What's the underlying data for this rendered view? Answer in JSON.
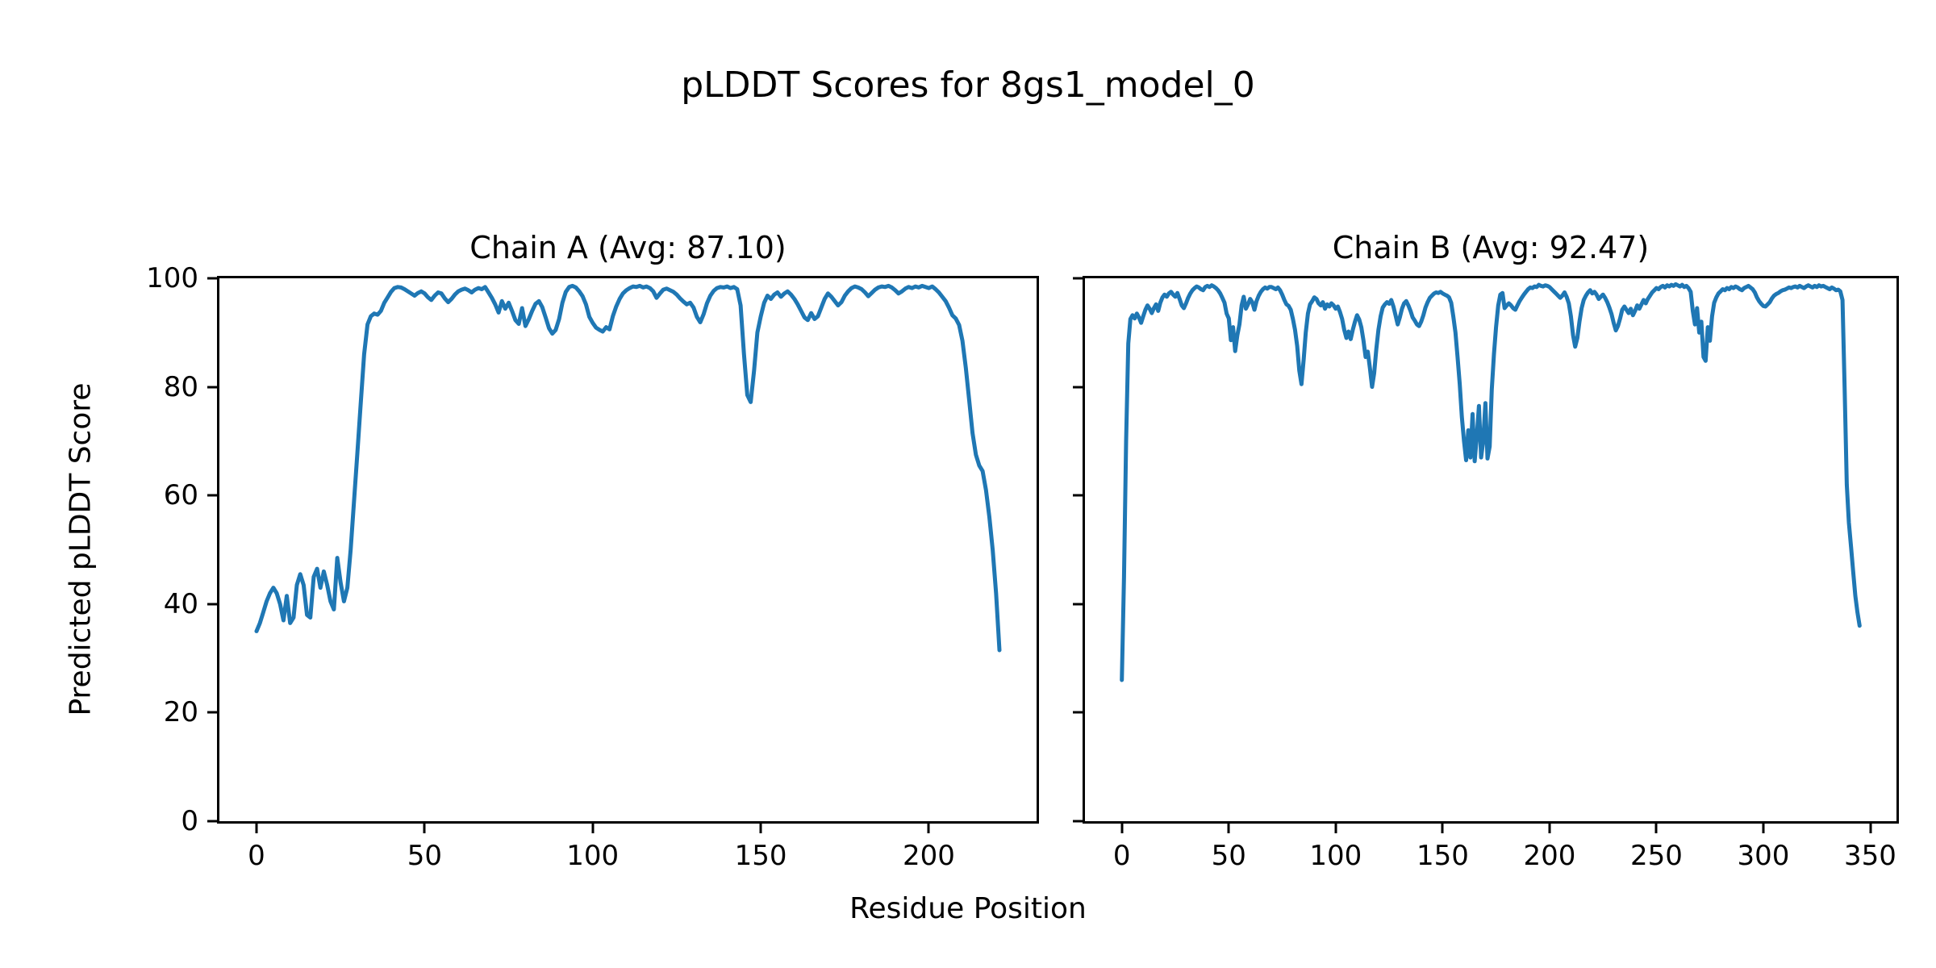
{
  "figure": {
    "suptitle": "pLDDT Scores for 8gs1_model_0",
    "xlabel": "Residue Position",
    "ylabel": "Predicted pLDDT Score",
    "line_color": "#1f77b4",
    "axis_color": "#000000",
    "background_color": "#ffffff",
    "grid": false,
    "legend": "none"
  },
  "chart_data": [
    {
      "type": "line",
      "title": "Chain A (Avg: 87.10)",
      "chain": "A",
      "avg_plddt": "87.10",
      "x_start": 0,
      "xlim": [
        -11.05,
        232.05
      ],
      "ylim": [
        0,
        100
      ],
      "xticks": [
        0,
        50,
        100,
        150,
        200
      ],
      "yticks": [
        0,
        20,
        40,
        60,
        80,
        100
      ],
      "show_ytick_labels": true,
      "values": [
        35,
        36.5,
        38.5,
        40.5,
        42,
        43,
        42,
        40,
        37,
        41.5,
        36.5,
        37.5,
        43.5,
        45.5,
        43.5,
        38,
        37.5,
        45,
        46.5,
        43,
        46,
        43.5,
        40.5,
        39,
        48.5,
        44,
        40.5,
        43,
        50,
        59,
        68,
        77,
        86,
        91.5,
        93,
        93.5,
        93.3,
        94,
        95.5,
        96.5,
        97.5,
        98.2,
        98.4,
        98.3,
        98,
        97.6,
        97.2,
        96.8,
        97.3,
        97.6,
        97.2,
        96.5,
        96,
        96.8,
        97.4,
        97.2,
        96.3,
        95.6,
        96.2,
        97,
        97.6,
        97.9,
        98.1,
        97.8,
        97.4,
        97.9,
        98.2,
        98,
        98.4,
        97.4,
        96.4,
        95.2,
        93.7,
        95.8,
        94.4,
        95.5,
        94,
        92.3,
        91.6,
        94.5,
        91.2,
        92.5,
        94,
        95.3,
        95.8,
        94.7,
        92.8,
        90.8,
        89.8,
        90.5,
        92.5,
        95.5,
        97.5,
        98.4,
        98.6,
        98.3,
        97.6,
        96.7,
        95.2,
        92.9,
        91.8,
        90.9,
        90.5,
        90.2,
        91,
        90.6,
        93,
        94.8,
        96.2,
        97.2,
        97.8,
        98.2,
        98.5,
        98.4,
        98.6,
        98.3,
        98.5,
        98.2,
        97.6,
        96.4,
        97.2,
        97.9,
        98.1,
        97.8,
        97.5,
        97,
        96.3,
        95.7,
        95.2,
        95.5,
        94.6,
        92.9,
        91.9,
        93.4,
        95.4,
        96.8,
        97.7,
        98.2,
        98.4,
        98.3,
        98.5,
        98.2,
        98.4,
        98,
        95,
        86,
        78.5,
        77.2,
        83,
        90,
        93,
        95.5,
        96.8,
        96.2,
        97,
        97.4,
        96.6,
        97.2,
        97.6,
        97,
        96.2,
        95.2,
        94,
        92.8,
        92.3,
        93.6,
        92.5,
        93,
        94.6,
        96.2,
        97.2,
        96.6,
        95.8,
        95,
        95.6,
        96.8,
        97.6,
        98.2,
        98.5,
        98.3,
        98,
        97.4,
        96.7,
        97.3,
        97.9,
        98.3,
        98.5,
        98.4,
        98.6,
        98.3,
        97.8,
        97.2,
        97.6,
        98.1,
        98.4,
        98.2,
        98.5,
        98.3,
        98.6,
        98.4,
        98.2,
        98.5,
        98,
        97.4,
        96.6,
        95.8,
        94.6,
        93.2,
        92.6,
        91.4,
        88.5,
        83.5,
        77.5,
        71.5,
        67.5,
        65.5,
        64.5,
        61,
        56,
        50,
        42,
        31.5
      ]
    },
    {
      "type": "line",
      "title": "Chain B (Avg: 92.47)",
      "chain": "B",
      "avg_plddt": "92.47",
      "x_start": 0,
      "xlim": [
        -17.25,
        362.25
      ],
      "ylim": [
        0,
        100
      ],
      "xticks": [
        0,
        50,
        100,
        150,
        200,
        250,
        300,
        350
      ],
      "yticks": [
        0,
        20,
        40,
        60,
        80,
        100
      ],
      "show_ytick_labels": false,
      "values": [
        26,
        45,
        70,
        88,
        92.5,
        93.2,
        92.6,
        93.5,
        92.8,
        91.8,
        93,
        94.2,
        95,
        94.4,
        93.6,
        94.5,
        95.2,
        94,
        95.5,
        96.5,
        97,
        96.6,
        97.2,
        97.5,
        97,
        96.6,
        97.3,
        96.2,
        95,
        94.5,
        95.4,
        96.4,
        97.2,
        97.8,
        98.2,
        98.5,
        98.3,
        98,
        97.8,
        98.4,
        98.6,
        98.4,
        98.7,
        98.5,
        98.2,
        97.8,
        97.2,
        96.4,
        95.5,
        93.5,
        92.6,
        88.6,
        91,
        86.6,
        89.5,
        91.5,
        95,
        96.6,
        94.4,
        95.2,
        96.2,
        95.6,
        94.2,
        95.8,
        96.8,
        97.5,
        98,
        98.3,
        98.1,
        98.4,
        98.4,
        98.2,
        98,
        98.3,
        97.8,
        97,
        96,
        95.2,
        94.9,
        94.2,
        92.5,
        90.5,
        87.5,
        83,
        80.5,
        85,
        90,
        93.5,
        95.2,
        95.8,
        96.5,
        96.2,
        95.4,
        95,
        95.6,
        94.4,
        95.2,
        94.8,
        95.4,
        95,
        94.4,
        94.8,
        93.8,
        92.5,
        90.5,
        89,
        90.2,
        88.8,
        90.5,
        92,
        93.2,
        92.4,
        91,
        88.5,
        85.5,
        86.5,
        83.5,
        80,
        82.5,
        87,
        90.5,
        93,
        94.6,
        95.2,
        95.6,
        95.3,
        96,
        94.8,
        93.2,
        91.5,
        92.8,
        94.4,
        95.4,
        95.8,
        95,
        94,
        92.8,
        92.2,
        91.5,
        91.2,
        92,
        93.2,
        94.6,
        95.6,
        96.4,
        96.8,
        97.2,
        97.4,
        97.3,
        97.5,
        97.2,
        97,
        96.8,
        96.5,
        95.5,
        93,
        90,
        85.5,
        80.5,
        74.5,
        70,
        66.5,
        72,
        67,
        75,
        66.3,
        71,
        76.5,
        67,
        70,
        77,
        66.8,
        69,
        79.5,
        86,
        91,
        95,
        97,
        97.3,
        94.5,
        95,
        95.4,
        95,
        94.5,
        94.2,
        95,
        95.8,
        96.4,
        97,
        97.5,
        98,
        98.3,
        98.2,
        98.5,
        98.4,
        98.8,
        98.6,
        98.5,
        98.7,
        98.6,
        98.4,
        98,
        97.6,
        97.2,
        96.8,
        96.4,
        96.8,
        97.4,
        96.6,
        95.4,
        93,
        89.5,
        87.4,
        89,
        92,
        94.5,
        96,
        96.8,
        97.4,
        97.8,
        97.2,
        97.5,
        97,
        96.2,
        96.6,
        97,
        96.4,
        95.6,
        94.6,
        93.4,
        91.8,
        90.4,
        91.2,
        92.6,
        94.2,
        94.8,
        94.2,
        93.6,
        94.4,
        93.2,
        94,
        95,
        94.4,
        95.2,
        96,
        95.4,
        96.2,
        96.8,
        97.4,
        97.8,
        98.2,
        98,
        98.4,
        98.6,
        98.3,
        98.7,
        98.5,
        98.8,
        98.6,
        98.9,
        98.7,
        98.5,
        98.8,
        98.4,
        98.6,
        98.2,
        97.5,
        94,
        91.5,
        94.5,
        90,
        92,
        85.5,
        84.8,
        91,
        88.5,
        93,
        95.5,
        96.5,
        97.2,
        97.6,
        98,
        97.8,
        98.2,
        98,
        98.4,
        98.2,
        98.5,
        98.3,
        98,
        97.8,
        98.2,
        98.4,
        98.6,
        98.3,
        98,
        97.4,
        96.5,
        95.8,
        95.3,
        94.9,
        94.8,
        95.2,
        95.6,
        96.3,
        96.8,
        97.1,
        97.3,
        97.6,
        97.8,
        97.9,
        98.1,
        98.3,
        98.2,
        98.4,
        98.5,
        98.3,
        98.6,
        98.4,
        98.2,
        98.5,
        98.7,
        98.5,
        98.3,
        98.6,
        98.4,
        98.7,
        98.5,
        98.6,
        98.4,
        98.2,
        98,
        98.3,
        98.1,
        97.8,
        97.9,
        97.6,
        96,
        80,
        62,
        55,
        50.5,
        46,
        41.5,
        38.5,
        36
      ]
    }
  ]
}
